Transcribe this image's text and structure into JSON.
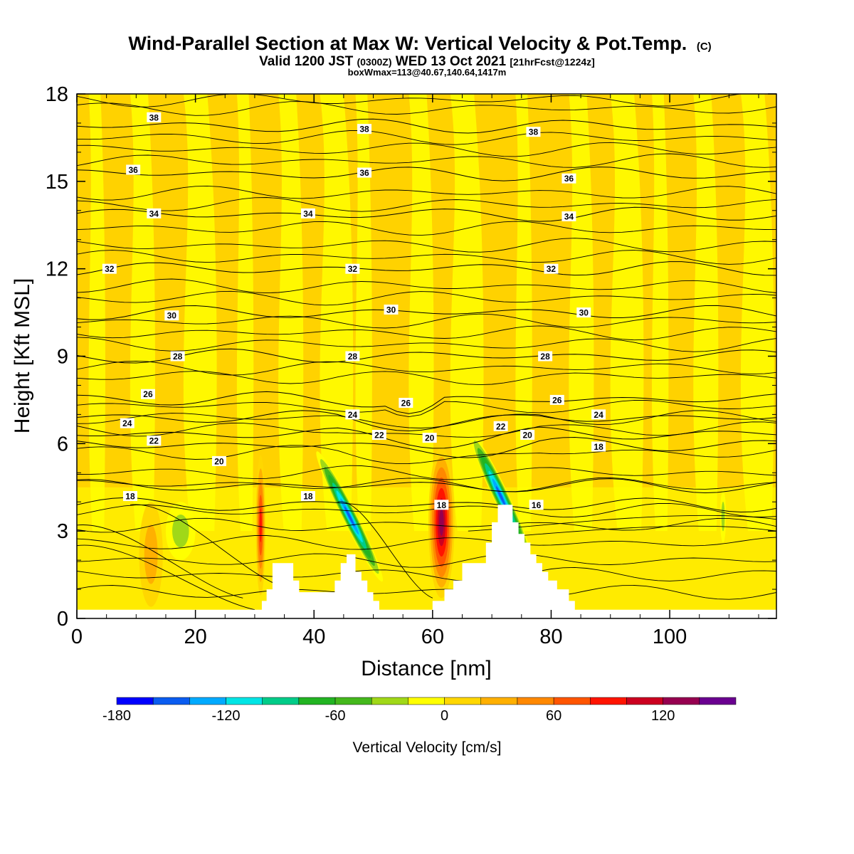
{
  "header": {
    "title_main": "Wind-Parallel Section at Max W: Vertical Velocity & Pot.Temp.",
    "title_mark": "(C)",
    "valid_prefix": "Valid 1200 JST",
    "valid_z": "(0300Z)",
    "valid_date": "WED 13 Oct 2021",
    "valid_fcst": "[21hrFcst@1224z]",
    "boxline": "boxWmax=113@40.67,140.64,1417m"
  },
  "chart_data": {
    "type": "heatmap",
    "xlabel": "Distance [nm]",
    "ylabel": "Height [Kft MSL]",
    "xlim": [
      0,
      118
    ],
    "ylim": [
      0,
      18
    ],
    "x_ticks": [
      0,
      20,
      40,
      60,
      80,
      100
    ],
    "y_ticks": [
      0,
      3,
      6,
      9,
      12,
      15,
      18
    ],
    "colorbar": {
      "label": "Vertical Velocity [cm/s]",
      "ticks": [
        -180,
        -120,
        -60,
        0,
        60,
        120
      ],
      "colors": [
        "#0000ff",
        "#0a5cf0",
        "#00aaff",
        "#00e5e5",
        "#00cc88",
        "#22b422",
        "#44b81c",
        "#a0d818",
        "#ffff00",
        "#ffd700",
        "#ffb000",
        "#ff8800",
        "#ff5500",
        "#ff1400",
        "#cc0020",
        "#960050",
        "#6a0090"
      ],
      "bounds": [
        -180,
        -160,
        -140,
        -120,
        -100,
        -80,
        -60,
        -40,
        -20,
        0,
        20,
        40,
        60,
        80,
        100,
        120,
        140,
        160
      ]
    },
    "terrain": [
      [
        0,
        0.3
      ],
      [
        30,
        0.3
      ],
      [
        31.2,
        0.3
      ],
      [
        31.2,
        0.6
      ],
      [
        32,
        0.6
      ],
      [
        32,
        1.0
      ],
      [
        33,
        1.0
      ],
      [
        33,
        1.9
      ],
      [
        36.5,
        1.9
      ],
      [
        36.5,
        1.3
      ],
      [
        37.5,
        1.3
      ],
      [
        37.5,
        0.9
      ],
      [
        43.5,
        0.9
      ],
      [
        43.5,
        1.3
      ],
      [
        44.5,
        1.3
      ],
      [
        44.5,
        1.9
      ],
      [
        45.5,
        1.9
      ],
      [
        45.5,
        2.2
      ],
      [
        47,
        2.2
      ],
      [
        47,
        1.6
      ],
      [
        48,
        1.6
      ],
      [
        48,
        1.3
      ],
      [
        49,
        1.3
      ],
      [
        49,
        0.9
      ],
      [
        50,
        0.9
      ],
      [
        50,
        0.6
      ],
      [
        51,
        0.6
      ],
      [
        51,
        0.3
      ],
      [
        60,
        0.3
      ],
      [
        60,
        0.6
      ],
      [
        62,
        0.6
      ],
      [
        62,
        1.0
      ],
      [
        63.5,
        1.0
      ],
      [
        63.5,
        1.3
      ],
      [
        65,
        1.3
      ],
      [
        65,
        1.9
      ],
      [
        69,
        1.9
      ],
      [
        69,
        2.6
      ],
      [
        70,
        2.6
      ],
      [
        70,
        3.3
      ],
      [
        71,
        3.3
      ],
      [
        71,
        3.9
      ],
      [
        73.5,
        3.9
      ],
      [
        73.5,
        3.3
      ],
      [
        74.5,
        3.3
      ],
      [
        74.5,
        2.9
      ],
      [
        75.5,
        2.9
      ],
      [
        75.5,
        2.6
      ],
      [
        76.5,
        2.6
      ],
      [
        76.5,
        2.2
      ],
      [
        77.5,
        2.2
      ],
      [
        77.5,
        1.9
      ],
      [
        78.5,
        1.9
      ],
      [
        78.5,
        1.6
      ],
      [
        79.5,
        1.6
      ],
      [
        79.5,
        1.3
      ],
      [
        81,
        1.3
      ],
      [
        81,
        1.0
      ],
      [
        83,
        1.0
      ],
      [
        83,
        0.6
      ],
      [
        84,
        0.6
      ],
      [
        84,
        0.3
      ],
      [
        118,
        0.3
      ]
    ],
    "velocity_features": [
      {
        "kind": "updraft",
        "x": 12.5,
        "y": 2.2,
        "rx": 2.0,
        "ry": 1.8,
        "peak": 50
      },
      {
        "kind": "updraft",
        "x": 31,
        "y": 3.2,
        "rx": 0.8,
        "ry": 2.4,
        "peak": 100
      },
      {
        "kind": "updraft",
        "x": 61.5,
        "y": 3.3,
        "rx": 2.2,
        "ry": 2.6,
        "peak": 150
      },
      {
        "kind": "downdraft",
        "x": 46,
        "y": 3.5,
        "rx": 1.2,
        "ry": 2.5,
        "peak": -160,
        "tilt": 0.4
      },
      {
        "kind": "downdraft",
        "x": 71.5,
        "y": 4.2,
        "rx": 1.3,
        "ry": 2.4,
        "peak": -160,
        "tilt": 0.35
      },
      {
        "kind": "downdraft",
        "x": 17.5,
        "y": 3.0,
        "rx": 2.5,
        "ry": 1.0,
        "peak": -40
      },
      {
        "kind": "downdraft",
        "x": 109,
        "y": 3.5,
        "rx": 0.5,
        "ry": 0.9,
        "peak": -40
      }
    ],
    "theta_labels": [
      {
        "text": "38",
        "x": 13,
        "y": 17.2
      },
      {
        "text": "38",
        "x": 48.5,
        "y": 16.8
      },
      {
        "text": "38",
        "x": 77,
        "y": 16.7
      },
      {
        "text": "36",
        "x": 9.5,
        "y": 15.4
      },
      {
        "text": "36",
        "x": 48.5,
        "y": 15.3
      },
      {
        "text": "36",
        "x": 83,
        "y": 15.1
      },
      {
        "text": "34",
        "x": 13,
        "y": 13.9
      },
      {
        "text": "34",
        "x": 39,
        "y": 13.9
      },
      {
        "text": "34",
        "x": 83,
        "y": 13.8
      },
      {
        "text": "32",
        "x": 5.5,
        "y": 12.0
      },
      {
        "text": "32",
        "x": 46.5,
        "y": 12.0
      },
      {
        "text": "32",
        "x": 80,
        "y": 12.0
      },
      {
        "text": "30",
        "x": 16,
        "y": 10.4
      },
      {
        "text": "30",
        "x": 53,
        "y": 10.6
      },
      {
        "text": "30",
        "x": 85.5,
        "y": 10.5
      },
      {
        "text": "28",
        "x": 17,
        "y": 9.0
      },
      {
        "text": "28",
        "x": 46.5,
        "y": 9.0
      },
      {
        "text": "28",
        "x": 79,
        "y": 9.0
      },
      {
        "text": "26",
        "x": 12,
        "y": 7.7
      },
      {
        "text": "26",
        "x": 55.5,
        "y": 7.4
      },
      {
        "text": "26",
        "x": 81,
        "y": 7.5
      },
      {
        "text": "24",
        "x": 8.5,
        "y": 6.7
      },
      {
        "text": "24",
        "x": 46.5,
        "y": 7.0
      },
      {
        "text": "24",
        "x": 88,
        "y": 7.0
      },
      {
        "text": "22",
        "x": 13,
        "y": 6.1
      },
      {
        "text": "22",
        "x": 51,
        "y": 6.3
      },
      {
        "text": "22",
        "x": 71.5,
        "y": 6.6
      },
      {
        "text": "20",
        "x": 24,
        "y": 5.4
      },
      {
        "text": "20",
        "x": 59.5,
        "y": 6.2
      },
      {
        "text": "20",
        "x": 76,
        "y": 6.3
      },
      {
        "text": "18",
        "x": 9,
        "y": 4.2
      },
      {
        "text": "18",
        "x": 39,
        "y": 4.2
      },
      {
        "text": "18",
        "x": 61.5,
        "y": 3.9
      },
      {
        "text": "18",
        "x": 88,
        "y": 5.9
      },
      {
        "text": "16",
        "x": 77.5,
        "y": 3.9
      }
    ]
  }
}
